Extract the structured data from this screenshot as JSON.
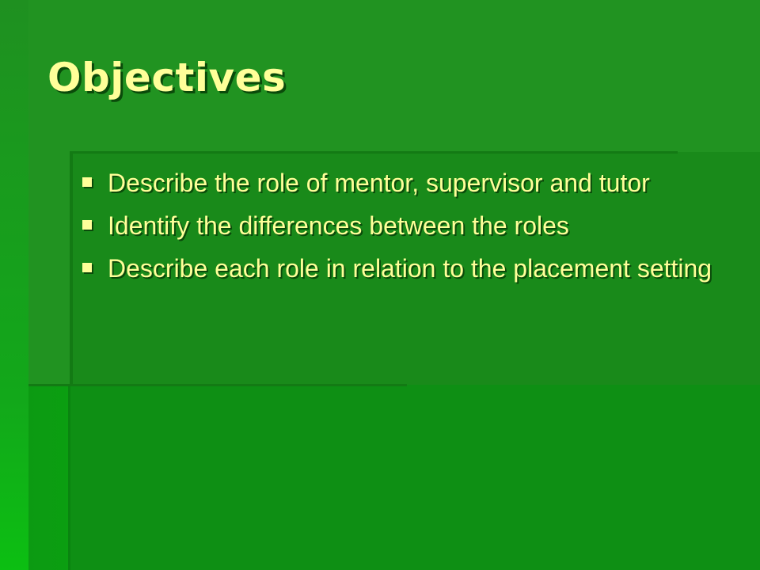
{
  "slide": {
    "title": "Objectives",
    "bullets": [
      {
        "text": "Describe the role of mentor, supervisor and tutor"
      },
      {
        "text": "Identify the differences between the roles"
      },
      {
        "text": "Describe each role in relation to the placement setting"
      }
    ],
    "colors": {
      "background": "#219321",
      "text": "#ffff99",
      "shadow": "#0a4a0a"
    },
    "bullet_icon": "square-bullet-icon"
  }
}
